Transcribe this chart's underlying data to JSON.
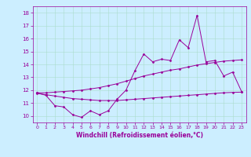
{
  "x_data": [
    0,
    1,
    2,
    3,
    4,
    5,
    6,
    7,
    8,
    9,
    10,
    11,
    12,
    13,
    14,
    15,
    16,
    17,
    18,
    19,
    20,
    21,
    22,
    23
  ],
  "main_line": [
    11.8,
    11.6,
    10.8,
    10.7,
    10.1,
    9.9,
    10.4,
    10.1,
    10.4,
    11.3,
    12.0,
    13.5,
    14.8,
    14.2,
    14.4,
    14.3,
    15.9,
    15.3,
    17.8,
    14.2,
    14.3,
    13.1,
    13.4,
    11.9
  ],
  "upper_trend": [
    11.8,
    11.8,
    11.85,
    11.9,
    11.95,
    12.0,
    12.1,
    12.2,
    12.35,
    12.5,
    12.7,
    12.9,
    13.1,
    13.25,
    13.4,
    13.55,
    13.65,
    13.8,
    13.95,
    14.05,
    14.15,
    14.25,
    14.3,
    14.35
  ],
  "lower_trend": [
    11.75,
    11.65,
    11.55,
    11.45,
    11.35,
    11.3,
    11.25,
    11.2,
    11.2,
    11.2,
    11.25,
    11.3,
    11.35,
    11.4,
    11.45,
    11.5,
    11.55,
    11.6,
    11.65,
    11.7,
    11.75,
    11.8,
    11.83,
    11.85
  ],
  "line_color": "#990099",
  "trend_color": "#990099",
  "bg_color": "#cceeff",
  "grid_color": "#aaddcc",
  "tick_color": "#990099",
  "xlabel": "Windchill (Refroidissement éolien,°C)",
  "xlim": [
    -0.5,
    23.5
  ],
  "ylim": [
    9.5,
    18.5
  ],
  "yticks": [
    10,
    11,
    12,
    13,
    14,
    15,
    16,
    17,
    18
  ],
  "xticks": [
    0,
    1,
    2,
    3,
    4,
    5,
    6,
    7,
    8,
    9,
    10,
    11,
    12,
    13,
    14,
    15,
    16,
    17,
    18,
    19,
    20,
    21,
    22,
    23
  ],
  "marker": "D",
  "markersize": 1.5,
  "linewidth": 0.7
}
